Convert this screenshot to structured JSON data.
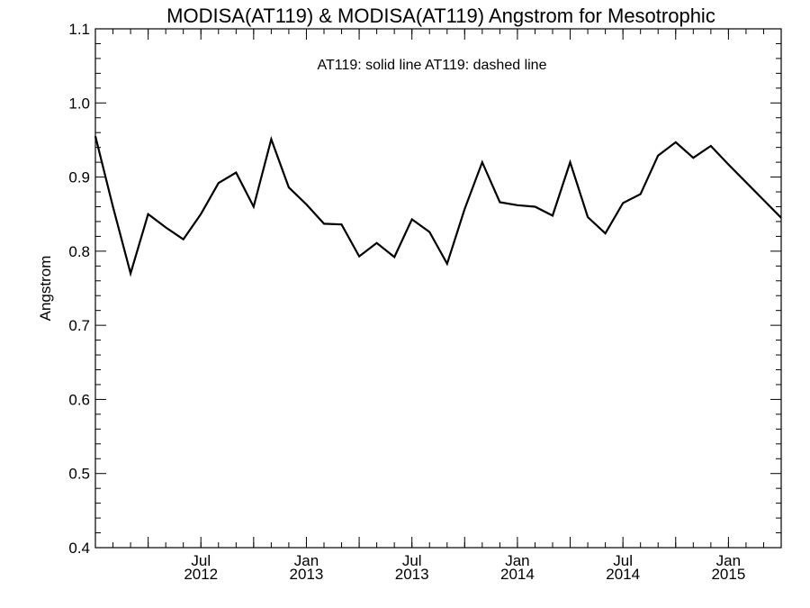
{
  "chart_data": {
    "type": "line",
    "title": "MODISA(AT119) & MODISA(AT119)  Angstrom for Mesotrophic",
    "annotation": "AT119: solid line   AT119: dashed line",
    "ylabel": "Angstrom",
    "xlabel": "",
    "ylim": [
      0.4,
      1.1
    ],
    "yticks": [
      {
        "value": 0.4,
        "label": "0.4"
      },
      {
        "value": 0.5,
        "label": "0.5"
      },
      {
        "value": 0.6,
        "label": "0.6"
      },
      {
        "value": 0.7,
        "label": "0.7"
      },
      {
        "value": 0.8,
        "label": "0.8"
      },
      {
        "value": 0.9,
        "label": "0.9"
      },
      {
        "value": 1.0,
        "label": "1.0"
      },
      {
        "value": 1.1,
        "label": "1.1"
      }
    ],
    "xlim": [
      "2012-01",
      "2015-04"
    ],
    "xticks": [
      {
        "value": "2012-07",
        "month": "Jul",
        "year": "2012"
      },
      {
        "value": "2013-01",
        "month": "Jan",
        "year": "2013"
      },
      {
        "value": "2013-07",
        "month": "Jul",
        "year": "2013"
      },
      {
        "value": "2014-01",
        "month": "Jan",
        "year": "2014"
      },
      {
        "value": "2014-07",
        "month": "Jul",
        "year": "2014"
      },
      {
        "value": "2015-01",
        "month": "Jan",
        "year": "2015"
      }
    ],
    "grid": false,
    "series": [
      {
        "line_style": "solid",
        "color": "#000000",
        "points": [
          {
            "x": "2012-01",
            "y": 0.955
          },
          {
            "x": "2012-02",
            "y": 0.86
          },
          {
            "x": "2012-03",
            "y": 0.77
          },
          {
            "x": "2012-04",
            "y": 0.85
          },
          {
            "x": "2012-05",
            "y": 0.832
          },
          {
            "x": "2012-06",
            "y": 0.816
          },
          {
            "x": "2012-07",
            "y": 0.85
          },
          {
            "x": "2012-08",
            "y": 0.892
          },
          {
            "x": "2012-09",
            "y": 0.906
          },
          {
            "x": "2012-10",
            "y": 0.86
          },
          {
            "x": "2012-11",
            "y": 0.951
          },
          {
            "x": "2012-12",
            "y": 0.886
          },
          {
            "x": "2013-01",
            "y": 0.863
          },
          {
            "x": "2013-02",
            "y": 0.837
          },
          {
            "x": "2013-03",
            "y": 0.836
          },
          {
            "x": "2013-04",
            "y": 0.793
          },
          {
            "x": "2013-05",
            "y": 0.811
          },
          {
            "x": "2013-06",
            "y": 0.792
          },
          {
            "x": "2013-07",
            "y": 0.843
          },
          {
            "x": "2013-08",
            "y": 0.826
          },
          {
            "x": "2013-09",
            "y": 0.783
          },
          {
            "x": "2013-10",
            "y": 0.857
          },
          {
            "x": "2013-11",
            "y": 0.92
          },
          {
            "x": "2013-12",
            "y": 0.866
          },
          {
            "x": "2014-01",
            "y": 0.862
          },
          {
            "x": "2014-02",
            "y": 0.86
          },
          {
            "x": "2014-03",
            "y": 0.848
          },
          {
            "x": "2014-04",
            "y": 0.92
          },
          {
            "x": "2014-05",
            "y": 0.846
          },
          {
            "x": "2014-06",
            "y": 0.824
          },
          {
            "x": "2014-07",
            "y": 0.865
          },
          {
            "x": "2014-08",
            "y": 0.877
          },
          {
            "x": "2014-09",
            "y": 0.929
          },
          {
            "x": "2014-10",
            "y": 0.947
          },
          {
            "x": "2014-11",
            "y": 0.926
          },
          {
            "x": "2014-12",
            "y": 0.942
          },
          {
            "x": "2015-01",
            "y": 0.917
          },
          {
            "x": "2015-02",
            "y": 0.893
          },
          {
            "x": "2015-03",
            "y": 0.869
          },
          {
            "x": "2015-04",
            "y": 0.845
          }
        ]
      }
    ]
  }
}
